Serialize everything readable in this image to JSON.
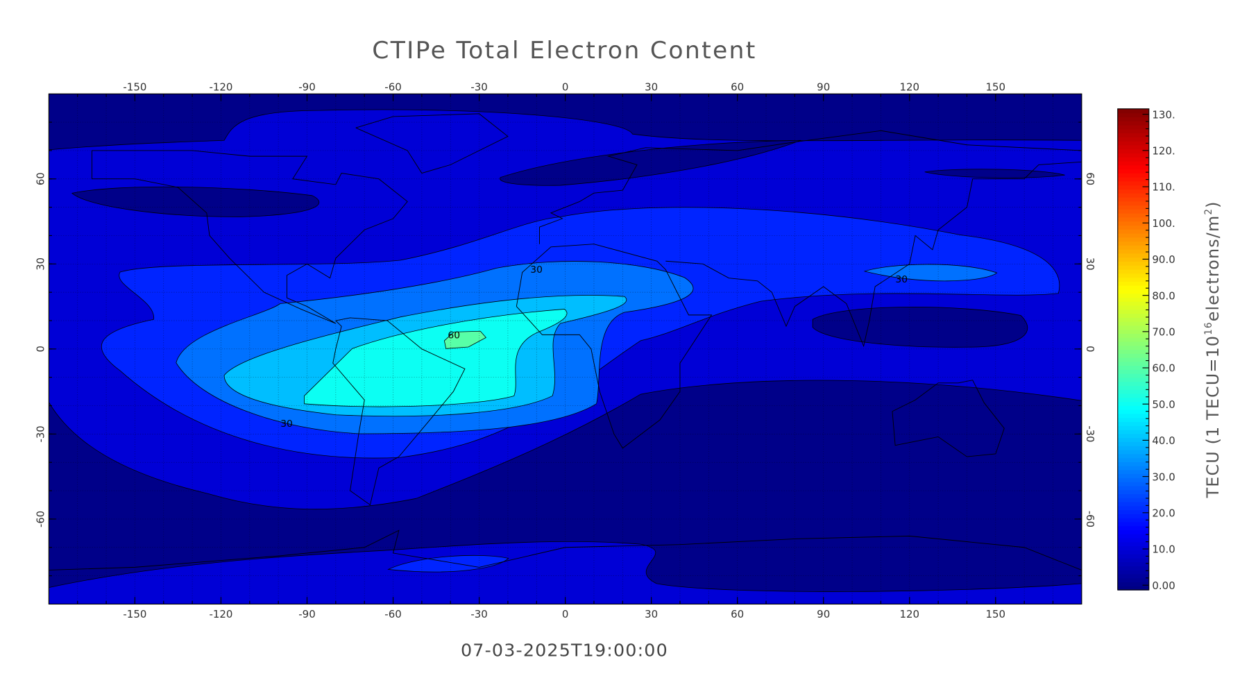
{
  "chart_data": {
    "type": "contour-map",
    "title": "CTIPe Total Electron Content",
    "subtitle": "07-03-2025T19:00:00",
    "xlim": [
      -180,
      180
    ],
    "ylim": [
      -90,
      90
    ],
    "xticks": [
      -150,
      -120,
      -90,
      -60,
      -30,
      0,
      30,
      60,
      90,
      120,
      150
    ],
    "yticks": [
      -60,
      -30,
      0,
      30,
      60
    ],
    "grid": true,
    "colormap": "jet",
    "clim": [
      -1.3,
      131.5
    ],
    "cticks": [
      {
        "value": 0,
        "label": "0.00"
      },
      {
        "value": 10,
        "label": "10.0"
      },
      {
        "value": 20,
        "label": "20.0"
      },
      {
        "value": 30,
        "label": "30.0"
      },
      {
        "value": 40,
        "label": "40.0"
      },
      {
        "value": 50,
        "label": "50.0"
      },
      {
        "value": 60,
        "label": "60.0"
      },
      {
        "value": 70,
        "label": "70.0"
      },
      {
        "value": 80,
        "label": "80.0"
      },
      {
        "value": 90,
        "label": "90.0"
      },
      {
        "value": 100,
        "label": "100."
      },
      {
        "value": 110,
        "label": "110."
      },
      {
        "value": 120,
        "label": "120."
      },
      {
        "value": 130,
        "label": "130."
      }
    ],
    "colorbar_label": [
      "TECU (1 TECU=10",
      "16",
      "electrons/m",
      "2",
      ")"
    ],
    "contour_levels": [
      0,
      10,
      20,
      30,
      40,
      50,
      60
    ],
    "contour_labels": [
      60,
      30,
      30,
      30
    ]
  }
}
